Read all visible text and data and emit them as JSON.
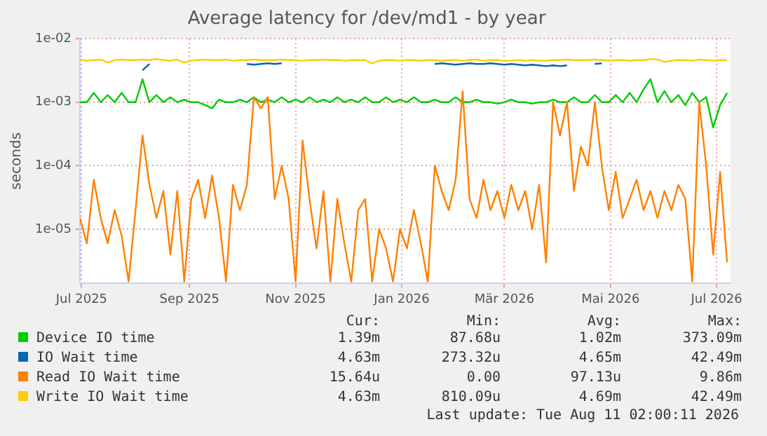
{
  "chart_data": {
    "type": "line",
    "title": "Average latency for /dev/md1 - by year",
    "ylabel": "seconds",
    "log": "y",
    "grid": true,
    "legend": "bottom",
    "marker": "none",
    "line_style": "solid",
    "xlim": [
      "2025-06-30",
      "2026-07-09"
    ],
    "xticks": [
      {
        "value": "2025-07-01",
        "label": "Jul 2025"
      },
      {
        "value": "2025-09-01",
        "label": "Sep 2025"
      },
      {
        "value": "2025-11-01",
        "label": "Nov 2025"
      },
      {
        "value": "2026-01-01",
        "label": "Jan 2026"
      },
      {
        "value": "2026-03-01",
        "label": "Mär 2026"
      },
      {
        "value": "2026-05-01",
        "label": "Mai 2026"
      },
      {
        "value": "2026-07-01",
        "label": "Jul 2026"
      }
    ],
    "ylim": [
      1.4e-06,
      0.01
    ],
    "yticks": [
      {
        "value": 1e-05,
        "label": "1e-05"
      },
      {
        "value": 0.0001,
        "label": "1e-04"
      },
      {
        "value": 0.001,
        "label": "1e-03"
      },
      {
        "value": 0.01,
        "label": "1e-02"
      }
    ],
    "x": [
      "2025-06-30",
      "2025-07-04",
      "2025-07-08",
      "2025-07-12",
      "2025-07-16",
      "2025-07-20",
      "2025-07-24",
      "2025-07-28",
      "2025-08-01",
      "2025-08-05",
      "2025-08-09",
      "2025-08-13",
      "2025-08-17",
      "2025-08-21",
      "2025-08-25",
      "2025-08-29",
      "2025-09-02",
      "2025-09-06",
      "2025-09-10",
      "2025-09-14",
      "2025-09-18",
      "2025-09-22",
      "2025-09-26",
      "2025-09-30",
      "2025-10-04",
      "2025-10-08",
      "2025-10-12",
      "2025-10-16",
      "2025-10-20",
      "2025-10-24",
      "2025-10-28",
      "2025-11-01",
      "2025-11-05",
      "2025-11-09",
      "2025-11-13",
      "2025-11-17",
      "2025-11-21",
      "2025-11-25",
      "2025-11-29",
      "2025-12-03",
      "2025-12-07",
      "2025-12-11",
      "2025-12-15",
      "2025-12-19",
      "2025-12-23",
      "2025-12-27",
      "2025-12-31",
      "2026-01-04",
      "2026-01-08",
      "2026-01-12",
      "2026-01-16",
      "2026-01-20",
      "2026-01-24",
      "2026-01-28",
      "2026-02-01",
      "2026-02-05",
      "2026-02-09",
      "2026-02-13",
      "2026-02-17",
      "2026-02-21",
      "2026-02-25",
      "2026-03-01",
      "2026-03-05",
      "2026-03-09",
      "2026-03-13",
      "2026-03-17",
      "2026-03-21",
      "2026-03-25",
      "2026-03-29",
      "2026-04-02",
      "2026-04-06",
      "2026-04-10",
      "2026-04-14",
      "2026-04-18",
      "2026-04-22",
      "2026-04-26",
      "2026-04-30",
      "2026-05-04",
      "2026-05-08",
      "2026-05-12",
      "2026-05-16",
      "2026-05-20",
      "2026-05-24",
      "2026-05-28",
      "2026-06-01",
      "2026-06-05",
      "2026-06-09",
      "2026-06-13",
      "2026-06-17",
      "2026-06-21",
      "2026-06-25",
      "2026-06-29",
      "2026-07-03",
      "2026-07-07"
    ],
    "series": [
      {
        "name": "Device IO time",
        "color": "#00cc00",
        "values": [
          0.001,
          0.001,
          0.0014,
          0.001,
          0.0013,
          0.001,
          0.0014,
          0.001,
          0.001,
          0.0023,
          0.001,
          0.0013,
          0.001,
          0.0012,
          0.001,
          0.0011,
          0.001,
          0.001,
          0.0009,
          0.0008,
          0.0011,
          0.001,
          0.001,
          0.0011,
          0.001,
          0.0012,
          0.001,
          0.0011,
          0.001,
          0.0012,
          0.001,
          0.0011,
          0.001,
          0.0012,
          0.001,
          0.0011,
          0.001,
          0.0012,
          0.001,
          0.0011,
          0.001,
          0.0012,
          0.001,
          0.001,
          0.0012,
          0.001,
          0.0011,
          0.001,
          0.0012,
          0.001,
          0.001,
          0.0011,
          0.001,
          0.001,
          0.0012,
          0.001,
          0.001,
          0.0011,
          0.001,
          0.001,
          0.00095,
          0.001,
          0.0011,
          0.001,
          0.001,
          0.00095,
          0.001,
          0.001,
          0.0011,
          0.001,
          0.001,
          0.0012,
          0.001,
          0.001,
          0.0013,
          0.001,
          0.001,
          0.0013,
          0.001,
          0.0014,
          0.001,
          0.0016,
          0.0023,
          0.001,
          0.0015,
          0.001,
          0.0013,
          0.0009,
          0.0014,
          0.001,
          0.0012,
          0.0004,
          0.0009,
          0.0014
        ]
      },
      {
        "name": "IO Wait time",
        "color": "#0066b3",
        "values": [
          null,
          null,
          null,
          null,
          null,
          null,
          null,
          null,
          null,
          0.0032,
          0.004,
          null,
          null,
          null,
          null,
          null,
          null,
          null,
          null,
          null,
          null,
          null,
          null,
          null,
          0.004,
          0.0039,
          0.004,
          0.0041,
          0.004,
          0.0041,
          null,
          null,
          null,
          null,
          null,
          null,
          null,
          null,
          null,
          null,
          null,
          null,
          null,
          null,
          null,
          null,
          null,
          null,
          null,
          null,
          null,
          0.004,
          0.0041,
          0.004,
          0.0039,
          0.004,
          0.0041,
          0.004,
          0.004,
          0.0041,
          0.004,
          0.0039,
          0.004,
          0.0039,
          0.0038,
          0.0039,
          0.0038,
          0.0037,
          0.0038,
          0.0037,
          0.0038,
          null,
          null,
          null,
          0.004,
          0.0041,
          null,
          null,
          null,
          null,
          null,
          null,
          null,
          null,
          null,
          null,
          null,
          null,
          null,
          null,
          null,
          null,
          null,
          null
        ]
      },
      {
        "name": "Read IO Wait time",
        "color": "#ff8000",
        "values": [
          1.5e-05,
          6e-06,
          6e-05,
          1.5e-05,
          6e-06,
          2e-05,
          8e-06,
          1.5e-06,
          2e-05,
          0.0003,
          5e-05,
          1.5e-05,
          4e-05,
          4e-06,
          4e-05,
          1.5e-06,
          3e-05,
          6e-05,
          1.5e-05,
          7e-05,
          1.5e-05,
          1.5e-06,
          5e-05,
          2e-05,
          5e-05,
          0.0012,
          0.0008,
          0.0012,
          3e-05,
          0.0001,
          3e-05,
          1.5e-06,
          0.00025,
          3e-05,
          5e-06,
          4e-05,
          1.5e-06,
          3e-05,
          6e-06,
          1.5e-06,
          2e-05,
          3e-05,
          1.5e-06,
          1e-05,
          5e-06,
          1.5e-06,
          1e-05,
          5e-06,
          2e-05,
          6e-06,
          1.5e-06,
          0.0001,
          4e-05,
          2e-05,
          6e-05,
          0.0015,
          3e-05,
          1.5e-05,
          6e-05,
          2e-05,
          4e-05,
          1.5e-05,
          5e-05,
          2e-05,
          4e-05,
          1e-05,
          5e-05,
          3e-06,
          0.001,
          0.0003,
          0.001,
          4e-05,
          0.0002,
          0.0001,
          0.001,
          0.0001,
          2e-05,
          8e-05,
          1.5e-05,
          3e-05,
          6e-05,
          2e-05,
          4e-05,
          1.5e-05,
          4e-05,
          2e-05,
          5e-05,
          3e-05,
          1.5e-06,
          0.001,
          0.0001,
          4e-06,
          8e-05,
          3e-06
        ]
      },
      {
        "name": "Write IO Wait time",
        "color": "#ffcc00",
        "values": [
          0.0047,
          0.0045,
          0.0046,
          0.0047,
          0.0042,
          0.0046,
          0.0047,
          0.0046,
          0.0046,
          0.0047,
          0.0046,
          0.0048,
          0.0046,
          0.0045,
          0.0047,
          0.0042,
          0.0045,
          0.0046,
          0.0047,
          0.0046,
          0.0046,
          0.0047,
          0.0045,
          0.0046,
          0.0046,
          0.0047,
          0.0046,
          0.0046,
          0.0046,
          0.0047,
          0.0046,
          0.0046,
          0.0045,
          0.0046,
          0.0046,
          0.0047,
          0.0046,
          0.0046,
          0.0045,
          0.0046,
          0.0046,
          0.0046,
          0.0041,
          0.0045,
          0.0046,
          0.0046,
          0.0045,
          0.0046,
          0.0046,
          0.0045,
          0.0046,
          0.0046,
          0.0045,
          0.0046,
          0.0046,
          0.0045,
          0.0046,
          0.0047,
          0.0045,
          0.0046,
          0.0046,
          0.0045,
          0.0045,
          0.0046,
          0.0045,
          0.0046,
          0.0045,
          0.0045,
          0.0046,
          0.0046,
          0.0047,
          0.0046,
          0.0046,
          0.0046,
          0.0047,
          0.0046,
          0.0045,
          0.0046,
          0.0046,
          0.0045,
          0.0046,
          0.0046,
          0.0048,
          0.0047,
          0.0043,
          0.0045,
          0.0046,
          0.0046,
          0.0045,
          0.0047,
          0.0046,
          0.0045,
          0.0046,
          0.0046
        ]
      }
    ],
    "annotations": [
      "Cur:",
      "Min:",
      "Avg:",
      "Max:",
      "1.39m",
      "87.68u",
      "1.02m",
      "373.09m",
      "4.63m",
      "273.32u",
      "4.65m",
      "42.49m",
      "15.64u",
      "0.00",
      "97.13u",
      "9.86m",
      "4.63m",
      "810.09u",
      "4.69m",
      "42.49m",
      "Last update: Tue Aug 11 02:00:11 2026"
    ]
  }
}
